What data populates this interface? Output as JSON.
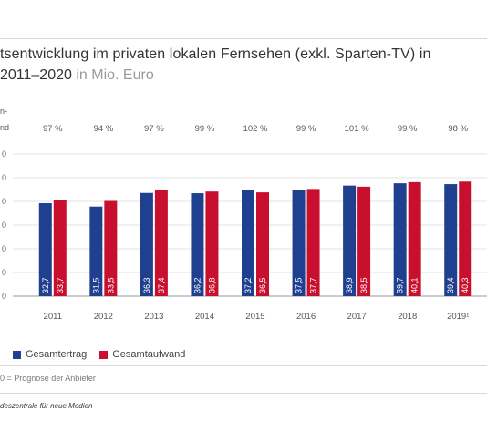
{
  "title": {
    "line1": "tsentwicklung im privaten lokalen Fernsehen (exkl. Sparten-TV) in",
    "line2": "2011–2020",
    "unit": "in Mio. Euro"
  },
  "axis_fragment": {
    "line1": "n-",
    "line2": "nd"
  },
  "chart_data": {
    "type": "bar",
    "categories": [
      "2011",
      "2012",
      "2013",
      "2014",
      "2015",
      "2016",
      "2017",
      "2018",
      "2019¹"
    ],
    "series": [
      {
        "name": "Gesamtertrag",
        "color": "#1f3f8f",
        "values": [
          32.7,
          31.5,
          36.3,
          36.2,
          37.2,
          37.5,
          38.9,
          39.7,
          39.4
        ]
      },
      {
        "name": "Gesamtaufwand",
        "color": "#c8102e",
        "values": [
          33.7,
          33.5,
          37.4,
          36.8,
          36.5,
          37.7,
          38.5,
          40.1,
          40.3
        ]
      }
    ],
    "data_labels": [
      [
        "32,7",
        "31,5",
        "36,3",
        "36,2",
        "37,2",
        "37,5",
        "38,9",
        "39,7",
        "39,4"
      ],
      [
        "33,7",
        "33,5",
        "37,4",
        "36,8",
        "36,5",
        "37,7",
        "38,5",
        "40,1",
        "40,3"
      ]
    ],
    "ratios": [
      "97 %",
      "94 %",
      "97 %",
      "99 %",
      "102 %",
      "99 %",
      "101 %",
      "99 %",
      "98 %"
    ],
    "ytick_labels": [
      "0",
      "0",
      "0",
      "0",
      "0",
      "0",
      "0"
    ],
    "ylim": [
      0,
      50
    ],
    "grid": true,
    "legend_position": "bottom-left"
  },
  "footnote": "0 = Prognose der Anbieter",
  "source": "deszentrale für neue Medien"
}
